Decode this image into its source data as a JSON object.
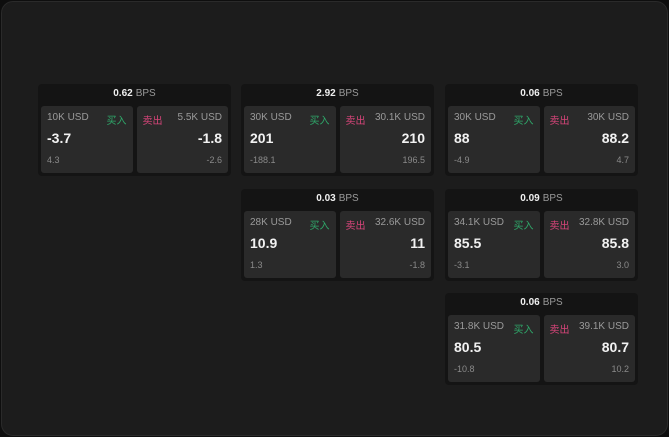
{
  "labels": {
    "unit": "BPS",
    "buy": "买入",
    "sell": "卖出"
  },
  "colors": {
    "buy": "#2fa86a",
    "sell": "#d8457a"
  },
  "cards": [
    {
      "spread": "0.62",
      "bid_qty": "10K USD",
      "bid": "-3.7",
      "bid_chg": "4.3",
      "ask_qty": "5.5K USD",
      "ask": "-1.8",
      "ask_chg": "-2.6"
    },
    {
      "spread": "2.92",
      "bid_qty": "30K USD",
      "bid": "201",
      "bid_chg": "-188.1",
      "ask_qty": "30.1K USD",
      "ask": "210",
      "ask_chg": "196.5"
    },
    {
      "spread": "0.06",
      "bid_qty": "30K USD",
      "bid": "88",
      "bid_chg": "-4.9",
      "ask_qty": "30K USD",
      "ask": "88.2",
      "ask_chg": "4.7"
    },
    {
      "spread": "0.03",
      "bid_qty": "28K USD",
      "bid": "10.9",
      "bid_chg": "1.3",
      "ask_qty": "32.6K USD",
      "ask": "11",
      "ask_chg": "-1.8"
    },
    {
      "spread": "0.09",
      "bid_qty": "34.1K USD",
      "bid": "85.5",
      "bid_chg": "-3.1",
      "ask_qty": "32.8K USD",
      "ask": "85.8",
      "ask_chg": "3.0"
    },
    {
      "spread": "0.06",
      "bid_qty": "31.8K USD",
      "bid": "80.5",
      "bid_chg": "-10.8",
      "ask_qty": "39.1K USD",
      "ask": "80.7",
      "ask_chg": "10.2"
    }
  ]
}
